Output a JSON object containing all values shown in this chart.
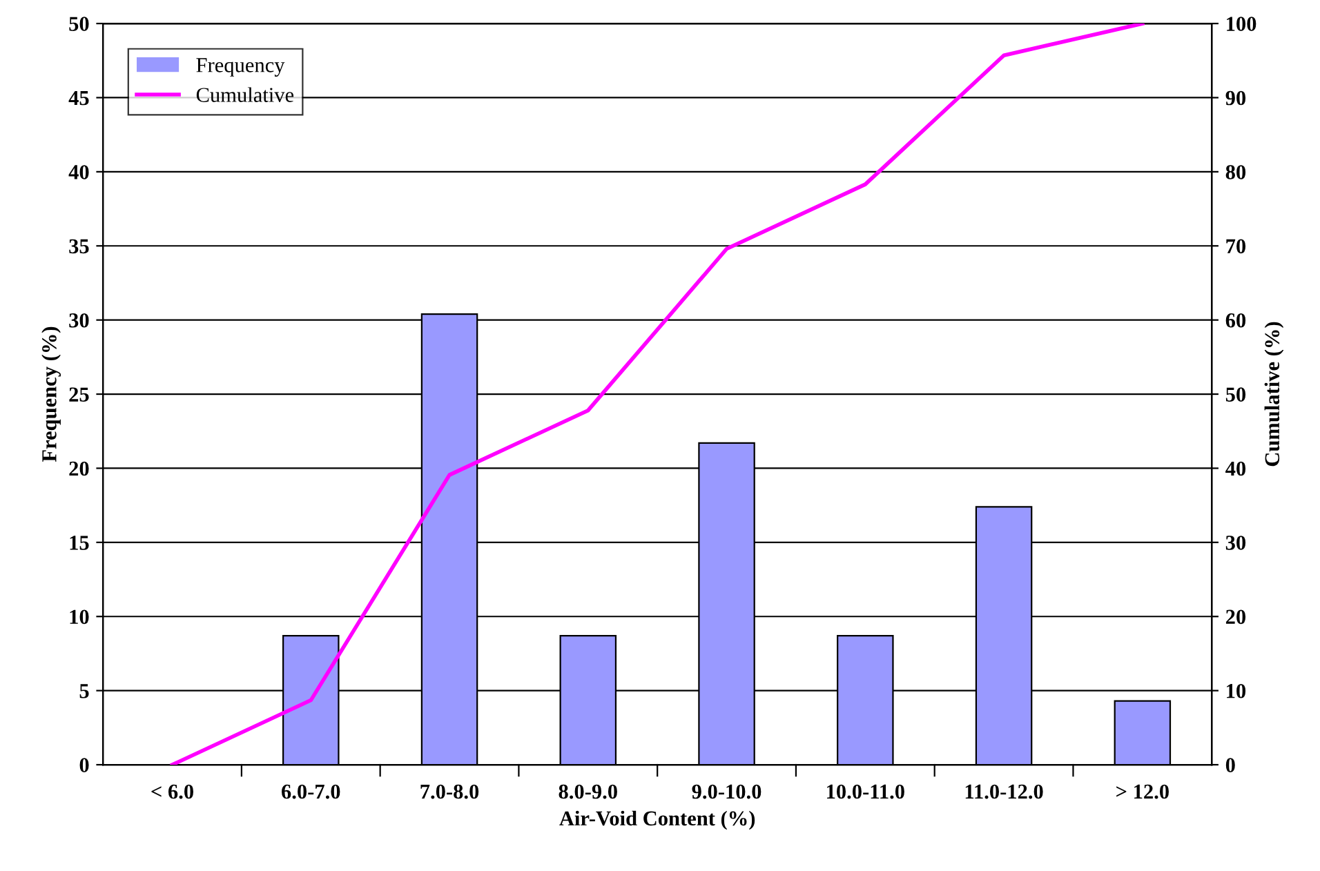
{
  "chart_data": {
    "type": "bar",
    "xlabel": "Air-Void Content (%)",
    "ylabel": "Frequency (%)",
    "y2label": "Cumulative (%)",
    "categories": [
      "< 6.0",
      "6.0-7.0",
      "7.0-8.0",
      "8.0-9.0",
      "9.0-10.0",
      "10.0-11.0",
      "11.0-12.0",
      "> 12.0"
    ],
    "series": [
      {
        "name": "Frequency",
        "color": "#9999ff",
        "values": [
          0,
          8.7,
          30.4,
          8.7,
          21.7,
          8.7,
          17.4,
          4.3
        ]
      },
      {
        "name": "Cumulative",
        "type": "line",
        "axis": "y2",
        "color": "#ff00ff",
        "values": [
          0,
          8.7,
          39.1,
          47.8,
          69.6,
          78.3,
          95.7,
          100
        ]
      }
    ],
    "ylim": [
      0,
      50
    ],
    "yticks": [
      0,
      5,
      10,
      15,
      20,
      25,
      30,
      35,
      40,
      45,
      50
    ],
    "y2lim": [
      0,
      100
    ],
    "y2ticks": [
      0,
      10,
      20,
      30,
      40,
      50,
      60,
      70,
      80,
      90,
      100
    ],
    "grid": "y",
    "legend": "top left"
  }
}
